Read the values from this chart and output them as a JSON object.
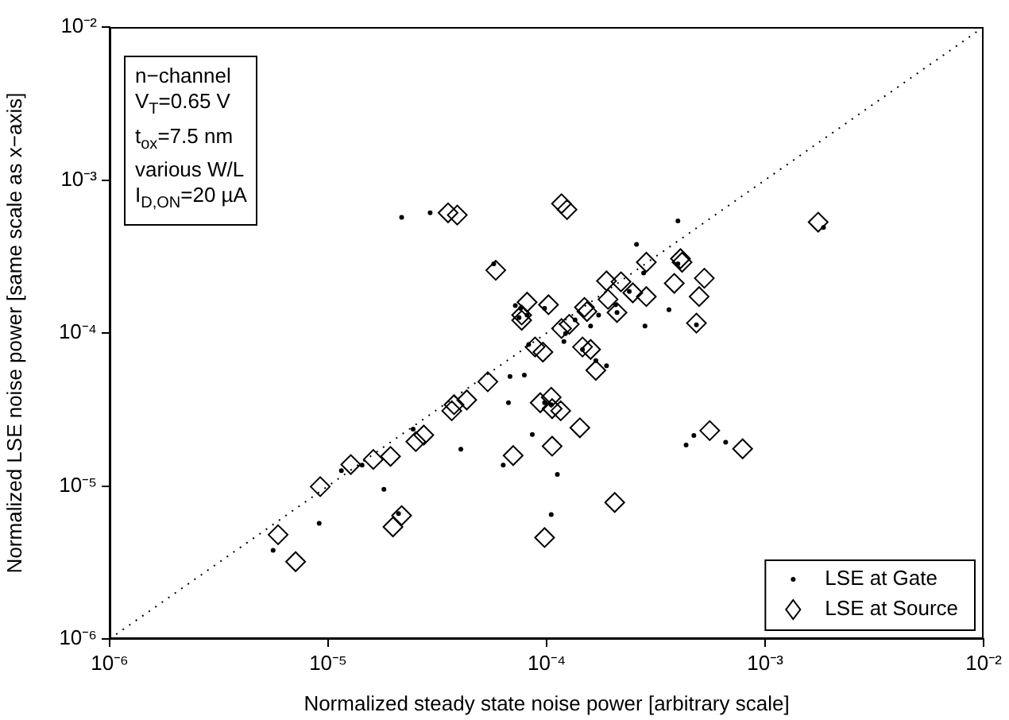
{
  "chart_data": {
    "type": "scatter",
    "xlabel": "Normalized steady state noise power [arbitrary scale]",
    "ylabel": "Normalized LSE noise power [same scale as x−axis]",
    "log": "xy",
    "xlim": [
      1e-06,
      0.01
    ],
    "ylim": [
      1e-06,
      0.01
    ],
    "xticks": [
      {
        "value": 1e-06,
        "label": "10⁻⁶"
      },
      {
        "value": 1e-05,
        "label": "10⁻⁵"
      },
      {
        "value": 0.0001,
        "label": "10⁻⁴"
      },
      {
        "value": 0.001,
        "label": "10⁻³"
      },
      {
        "value": 0.01,
        "label": "10⁻²"
      }
    ],
    "yticks": [
      {
        "value": 1e-06,
        "label": "10⁻⁶"
      },
      {
        "value": 1e-05,
        "label": "10⁻⁵"
      },
      {
        "value": 0.0001,
        "label": "10⁻⁴"
      },
      {
        "value": 0.001,
        "label": "10⁻³"
      },
      {
        "value": 0.01,
        "label": "10⁻²"
      }
    ],
    "grid": false,
    "legend": "bottom right",
    "annotations": [
      "n−channel",
      "V$_{T}$=0.65 V",
      "t$_{ox}$=7.5 nm",
      "various W/L",
      "I$_{D,ON}$=20 µA"
    ],
    "series": [
      {
        "name": "LSE at Gate",
        "marker": "circle",
        "color": "#000000",
        "x": [
          2.17e-05,
          2.93e-05,
          5.73e-05,
          7.19e-05,
          7.6e-05,
          7.48e-05,
          8.14e-05,
          9.79e-05,
          0.00012,
          8.28e-05,
          6.8e-05,
          7.91e-05,
          6.69e-05,
          8.6e-05,
          6.33e-05,
          0.000112,
          0.000105,
          4.05e-05,
          2.45e-05,
          1.8e-05,
          1.43e-05,
          1.15e-05,
          9.1e-06,
          5.6e-06,
          2.1e-05,
          9.79e-05,
          0.000105,
          0.000399,
          0.000258,
          0.000278,
          0.000239,
          0.000207,
          0.00021,
          0.000173,
          0.000159,
          0.000282,
          0.000363,
          0.000485,
          0.000122,
          0.000135,
          0.000146,
          0.000168,
          0.000188,
          0.000435,
          0.000472,
          0.00066,
          0.00185,
          0.000399
        ],
        "values": [
          0.00057,
          0.00061,
          0.000283,
          0.000151,
          0.000145,
          0.000126,
          0.000131,
          0.000145,
          8.8e-05,
          8.4e-05,
          5.2e-05,
          5.3e-05,
          3.5e-05,
          2.17e-05,
          1.37e-05,
          1.19e-05,
          6.5e-06,
          1.74e-05,
          2.35e-05,
          9.5e-06,
          1.37e-05,
          1.26e-05,
          5.7e-06,
          3.8e-06,
          6.6e-06,
          3.5e-05,
          3.4e-05,
          0.00054,
          0.00038,
          0.000247,
          0.000187,
          0.000153,
          0.000136,
          0.000131,
          0.000111,
          0.000111,
          0.000142,
          0.000113,
          9.9e-05,
          0.000122,
          7.8e-05,
          6.6e-05,
          6.1e-05,
          1.85e-05,
          2.14e-05,
          1.93e-05,
          0.00049,
          0.000283
        ]
      },
      {
        "name": "LSE at Source",
        "marker": "diamond",
        "color": "#000000",
        "x": [
          5.9e-06,
          7.1e-06,
          9.2e-06,
          1.27e-05,
          1.61e-05,
          1.93e-05,
          1.98e-05,
          2.17e-05,
          2.52e-05,
          2.74e-05,
          3.68e-05,
          3.77e-05,
          4.31e-05,
          5.38e-05,
          7.03e-05,
          3.54e-05,
          3.9e-05,
          5.85e-05,
          8.14e-05,
          7.69e-05,
          7.69e-05,
          0.000102,
          0.000117,
          8.85e-05,
          9.62e-05,
          9.35e-05,
          0.000105,
          0.000106,
          0.000116,
          0.000106,
          9.79e-05,
          0.000117,
          0.000124,
          0.000127,
          0.000149,
          0.000153,
          0.000191,
          0.000188,
          0.000219,
          0.00021,
          0.000248,
          0.000286,
          0.000286,
          0.00041,
          0.000417,
          0.000384,
          0.000527,
          0.000499,
          0.000485,
          0.000146,
          0.000159,
          0.000168,
          0.000142,
          0.000205,
          0.000558,
          0.000789,
          0.00175
        ],
        "values": [
          4.8e-06,
          3.2e-06,
          9.9e-06,
          1.38e-05,
          1.49e-05,
          1.56e-05,
          5.4e-06,
          6.4e-06,
          1.95e-05,
          2.15e-05,
          3.1e-05,
          3.4e-05,
          3.65e-05,
          4.8e-05,
          1.58e-05,
          0.00061,
          0.00059,
          0.000257,
          0.000159,
          0.000131,
          0.000121,
          0.000153,
          0.000107,
          8.1e-05,
          7.5e-05,
          3.5e-05,
          3.8e-05,
          3.2e-05,
          3.1e-05,
          1.82e-05,
          4.6e-06,
          0.0007,
          0.00064,
          0.000114,
          0.000147,
          0.000138,
          0.000166,
          0.000219,
          0.000216,
          0.000136,
          0.000183,
          0.000173,
          0.00029,
          0.000306,
          0.00029,
          0.000211,
          0.000228,
          0.000173,
          0.000116,
          8.1e-05,
          7.8e-05,
          5.7e-05,
          2.4e-05,
          7.8e-06,
          2.3e-05,
          1.75e-05,
          0.00053
        ]
      },
      {
        "type": "line",
        "marker": "none",
        "line_style": "dotted",
        "color": "#000000",
        "x": [
          1e-06,
          0.01
        ],
        "values": [
          1e-06,
          0.01
        ]
      }
    ]
  }
}
